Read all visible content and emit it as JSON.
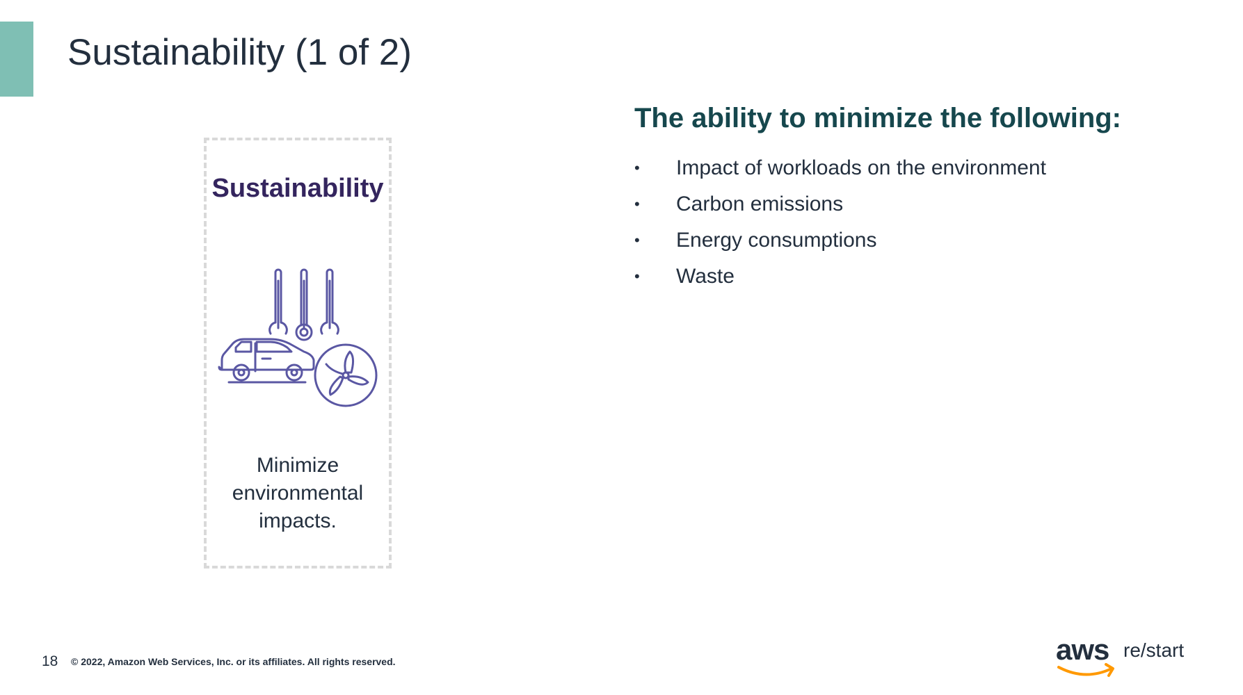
{
  "slide": {
    "title": "Sustainability (1 of 2)",
    "accent_color": "#7fbfb4",
    "page_number": "18",
    "copyright": "© 2022, Amazon Web Services, Inc. or its affiliates. All rights reserved."
  },
  "pillar": {
    "heading": "Sustainability",
    "heading_color": "#34255e",
    "icon": "thermometers-car-fan-icon",
    "caption_lines": [
      "Minimize",
      "environmental",
      "impacts."
    ]
  },
  "definition": {
    "heading": "The ability to minimize the following:",
    "heading_color": "#16474d",
    "bullet_symbol": "•",
    "items": [
      "Impact of workloads on the environment",
      "Carbon emissions",
      "Energy consumptions",
      "Waste"
    ]
  },
  "branding": {
    "aws_text": "aws",
    "restart_text": "re/start",
    "smile_color": "#ff9900"
  }
}
